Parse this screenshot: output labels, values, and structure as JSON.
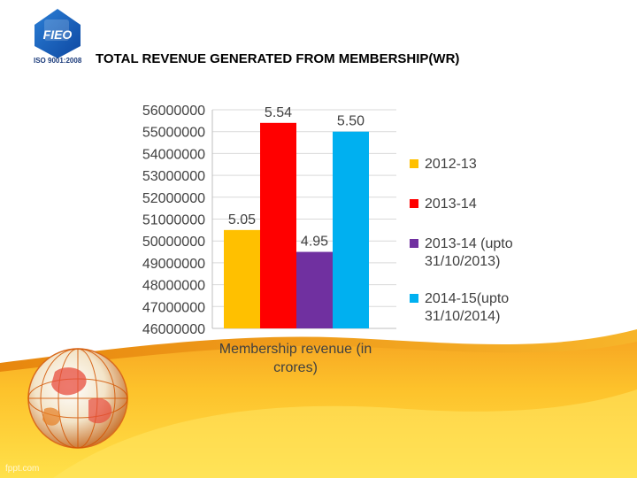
{
  "slide": {
    "title": "TOTAL REVENUE GENERATED FROM MEMBERSHIP(WR)",
    "logo_text": "FIEO",
    "logo_caption": "ISO 9001:2008",
    "watermark": "fppt.com"
  },
  "colors": {
    "background_top": "#ffffff",
    "wave_dark": "#f39c12",
    "wave_light": "#fdd835",
    "logo_blue": "#1565c0"
  },
  "chart_data": {
    "type": "bar",
    "title": "",
    "xlabel": "Membership revenue (in crores)",
    "ylabel": "",
    "ylim": [
      46000000,
      56000000
    ],
    "yticks": [
      46000000,
      47000000,
      48000000,
      49000000,
      50000000,
      51000000,
      52000000,
      53000000,
      54000000,
      55000000,
      56000000
    ],
    "ytick_labels": [
      "46000000",
      "47000000",
      "48000000",
      "49000000",
      "50000000",
      "51000000",
      "52000000",
      "53000000",
      "54000000",
      "55000000",
      "56000000"
    ],
    "grid": true,
    "legend_position": "right",
    "series": [
      {
        "name": "2012-13",
        "name_lines": [
          "2012-13"
        ],
        "value": 50500000,
        "label": "5.05",
        "color": "#ffc000"
      },
      {
        "name": "2013-14",
        "name_lines": [
          "2013-14"
        ],
        "value": 55400000,
        "label": "5.54",
        "color": "#ff0000"
      },
      {
        "name": "2013-14 (upto 31/10/2013)",
        "name_lines": [
          "2013-14 (upto",
          "31/10/2013)"
        ],
        "value": 49500000,
        "label": "4.95",
        "color": "#7030a0"
      },
      {
        "name": "2014-15(upto 31/10/2014)",
        "name_lines": [
          "2014-15(upto",
          "31/10/2014)"
        ],
        "value": 55000000,
        "label": "5.50",
        "color": "#00b0f0"
      }
    ]
  }
}
